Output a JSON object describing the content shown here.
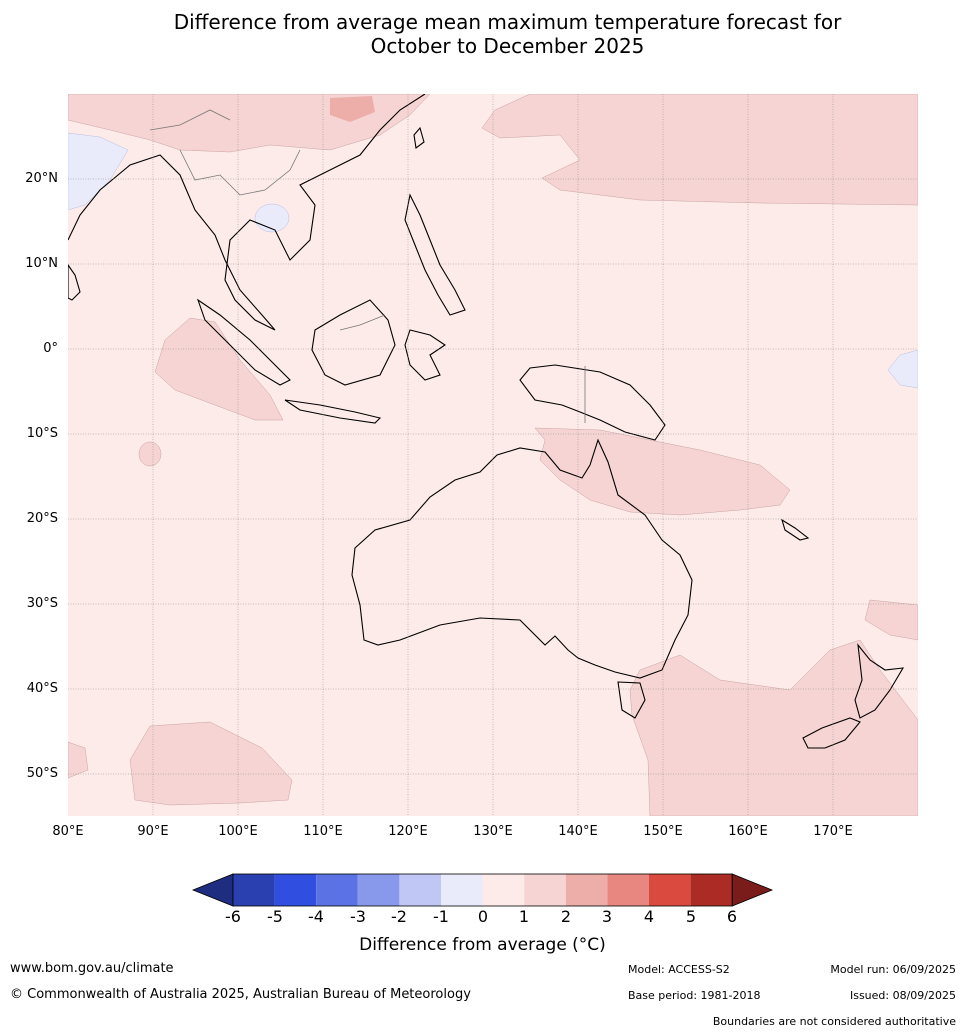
{
  "title": {
    "line1": "Difference from average mean maximum temperature forecast for",
    "line2": "October to December 2025"
  },
  "map": {
    "lat_labels": [
      "20°N",
      "10°N",
      "0°",
      "10°S",
      "20°S",
      "30°S",
      "40°S",
      "50°S"
    ],
    "lon_labels": [
      "80°E",
      "90°E",
      "100°E",
      "110°E",
      "120°E",
      "130°E",
      "140°E",
      "150°E",
      "160°E",
      "170°E"
    ],
    "background_anomaly_color": "#fcebe9"
  },
  "colorbar": {
    "ticks": [
      "-6",
      "-5",
      "-4",
      "-3",
      "-2",
      "-1",
      "0",
      "1",
      "2",
      "3",
      "4",
      "5",
      "6"
    ],
    "colors": [
      "#1f2d80",
      "#2a3fb0",
      "#304fe0",
      "#5a72e4",
      "#8899ec",
      "#c0c7f4",
      "#e9ebfa",
      "#fcebe9",
      "#f5d4d3",
      "#edaea9",
      "#e88780",
      "#da4a3f",
      "#aa2c24",
      "#7a1d1a"
    ],
    "label": "Difference from average (°C)"
  },
  "footer": {
    "website": "www.bom.gov.au/climate",
    "copyright": "© Commonwealth of Australia 2025, Australian Bureau of Meteorology",
    "model": "Model: ACCESS-S2",
    "base_period": "Base period: 1981-2018",
    "model_run": "Model run: 06/09/2025",
    "issued": "Issued: 08/09/2025",
    "disclaimer": "Boundaries are not considered authoritative"
  }
}
